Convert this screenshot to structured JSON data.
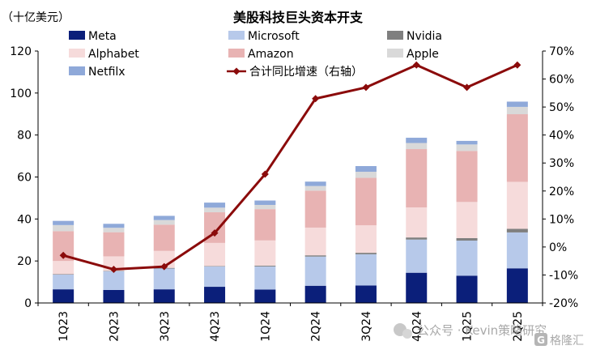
{
  "chart_data": {
    "type": "bar",
    "title": "美股科技巨头资本开支",
    "left_unit": "（十亿美元）",
    "categories": [
      "1Q23",
      "2Q23",
      "3Q23",
      "4Q23",
      "1Q24",
      "2Q24",
      "3Q24",
      "4Q24",
      "1Q25",
      "2Q25"
    ],
    "ylim": [
      0,
      120
    ],
    "yticks": [
      "0",
      "20",
      "40",
      "60",
      "80",
      "100",
      "120"
    ],
    "y2lim": [
      -20,
      70
    ],
    "y2ticks": [
      "-20%",
      "-10%",
      "0%",
      "10%",
      "20%",
      "30%",
      "40%",
      "50%",
      "60%",
      "70%"
    ],
    "stack_series": [
      {
        "name": "Meta",
        "color": "#0b1f7a",
        "values": [
          6.5,
          6.2,
          6.5,
          7.7,
          6.4,
          8.2,
          8.3,
          14.4,
          13.0,
          16.5
        ]
      },
      {
        "name": "Microsoft",
        "color": "#b7c9ea",
        "values": [
          7.0,
          8.9,
          9.9,
          9.7,
          11.0,
          13.9,
          14.9,
          15.8,
          16.7,
          17.1
        ]
      },
      {
        "name": "Nvidia",
        "color": "#7f7f7f",
        "values": [
          0.2,
          0.2,
          0.3,
          0.2,
          0.4,
          0.6,
          0.7,
          1.0,
          1.2,
          1.7
        ]
      },
      {
        "name": "Alphabet",
        "color": "#f6dbdb",
        "values": [
          6.3,
          6.9,
          8.1,
          11.0,
          12.0,
          13.2,
          13.1,
          14.3,
          17.2,
          22.4
        ]
      },
      {
        "name": "Amazon",
        "color": "#e8b3b3",
        "values": [
          14.2,
          11.5,
          12.5,
          14.6,
          14.9,
          17.6,
          22.6,
          27.8,
          24.3,
          32.2
        ]
      },
      {
        "name": "Apple",
        "color": "#d9d9d9",
        "values": [
          2.9,
          2.1,
          2.2,
          2.2,
          2.0,
          2.2,
          2.9,
          2.9,
          3.1,
          3.5
        ]
      },
      {
        "name": "Netfilx",
        "color": "#8fa9d9",
        "values": [
          2.0,
          1.9,
          2.0,
          2.4,
          2.1,
          2.1,
          2.7,
          2.5,
          1.7,
          2.5
        ]
      }
    ],
    "line_series": {
      "name": "合计同比增速（右轴）",
      "color": "#8b0b0b",
      "values": [
        -3,
        -8,
        -7,
        5,
        26,
        53,
        57,
        65,
        57,
        65
      ]
    },
    "legend_placement": "top",
    "grid": false
  },
  "watermark": {
    "text": "公众号 · Kevin策略研究",
    "logo": "格隆汇"
  }
}
